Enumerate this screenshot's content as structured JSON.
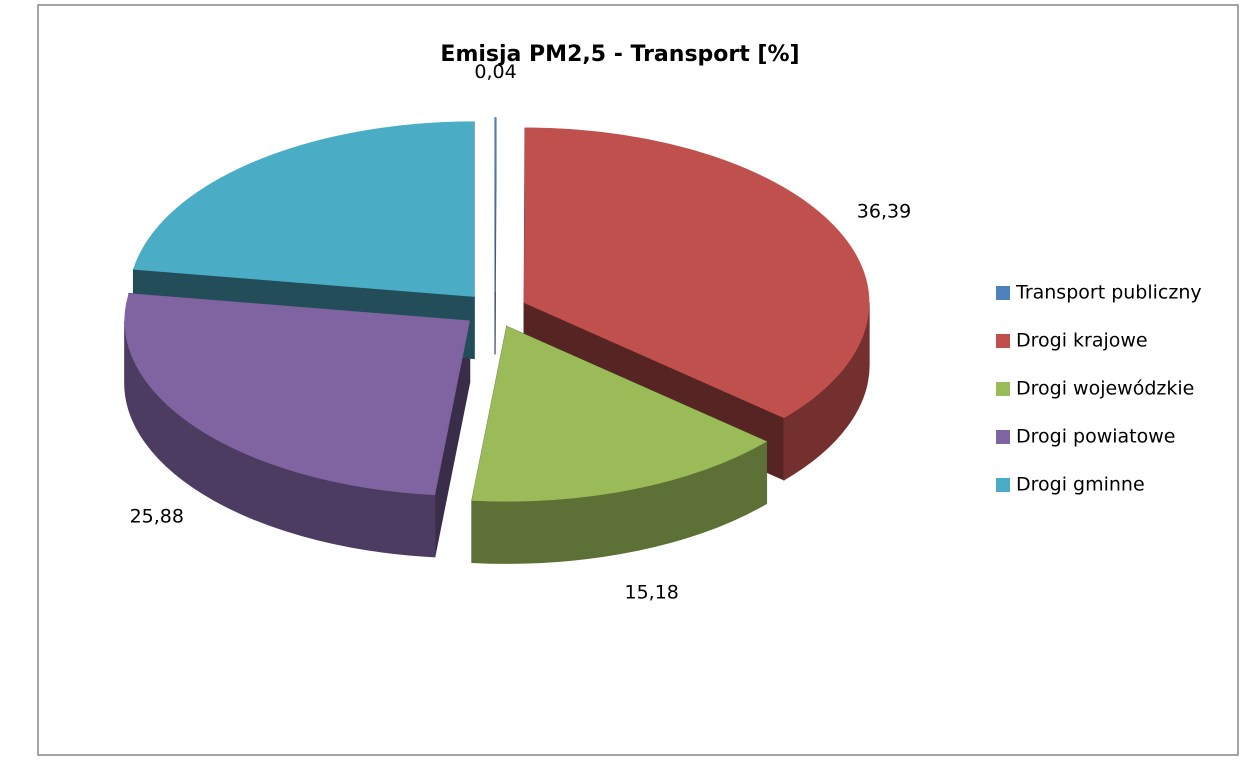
{
  "chart_data": {
    "type": "pie3d",
    "title": "Emisja PM2,5 - Transport [%]",
    "categories": [
      "Transport publiczny",
      "Drogi krajowe",
      "Drogi wojewódzkie",
      "Drogi powiatowe",
      "Drogi gminne"
    ],
    "values": [
      0.04,
      36.39,
      15.18,
      25.88,
      22.51
    ],
    "value_labels": [
      "0,04",
      "36,39",
      "15,18",
      "25,88",
      null
    ],
    "colors": [
      "#4f81bd",
      "#c0504d",
      "#9bbb59",
      "#8064a2",
      "#4bacc6"
    ],
    "legend": "right"
  }
}
